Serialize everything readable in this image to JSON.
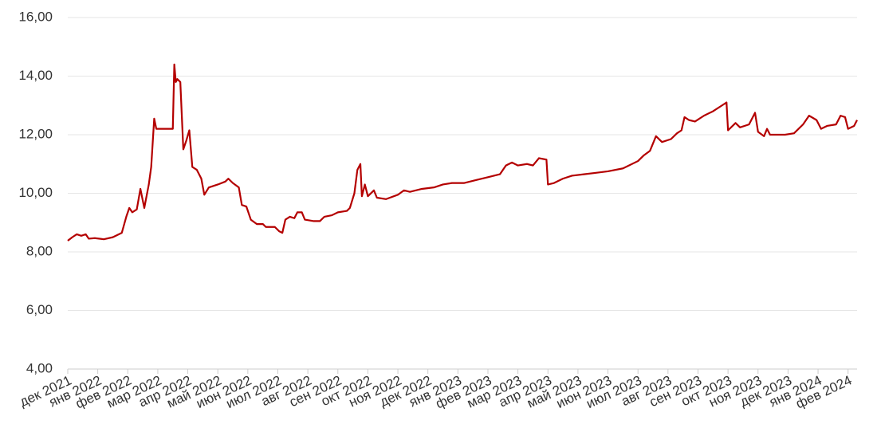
{
  "chart_data": {
    "type": "line",
    "color": "#b40000",
    "grid": true,
    "ylim": [
      4,
      16
    ],
    "yticks": [
      {
        "value": 4,
        "label": "4,00"
      },
      {
        "value": 6,
        "label": "6,00"
      },
      {
        "value": 8,
        "label": "8,00"
      },
      {
        "value": 10,
        "label": "10,00"
      },
      {
        "value": 12,
        "label": "12,00"
      },
      {
        "value": 14,
        "label": "14,00"
      },
      {
        "value": 16,
        "label": "16,00"
      }
    ],
    "xlim": [
      0,
      26.3
    ],
    "xticks": [
      {
        "value": 0,
        "label": "дек 2021"
      },
      {
        "value": 1,
        "label": "янв 2022"
      },
      {
        "value": 2,
        "label": "фев 2022"
      },
      {
        "value": 3,
        "label": "мар 2022"
      },
      {
        "value": 4,
        "label": "апр 2022"
      },
      {
        "value": 5,
        "label": "май 2022"
      },
      {
        "value": 6,
        "label": "июн 2022"
      },
      {
        "value": 7,
        "label": "июл 2022"
      },
      {
        "value": 8,
        "label": "авг 2022"
      },
      {
        "value": 9,
        "label": "сен 2022"
      },
      {
        "value": 10,
        "label": "окт 2022"
      },
      {
        "value": 11,
        "label": "ноя 2022"
      },
      {
        "value": 12,
        "label": "дек 2022"
      },
      {
        "value": 13,
        "label": "янв 2023"
      },
      {
        "value": 14,
        "label": "фев 2023"
      },
      {
        "value": 15,
        "label": "мар 2023"
      },
      {
        "value": 16,
        "label": "апр 2023"
      },
      {
        "value": 17,
        "label": "май 2023"
      },
      {
        "value": 18,
        "label": "июн 2023"
      },
      {
        "value": 19,
        "label": "июл 2023"
      },
      {
        "value": 20,
        "label": "авг 2023"
      },
      {
        "value": 21,
        "label": "сен 2023"
      },
      {
        "value": 22,
        "label": "окт 2023"
      },
      {
        "value": 23,
        "label": "ноя 2023"
      },
      {
        "value": 24,
        "label": "дек 2023"
      },
      {
        "value": 25,
        "label": "янв 2024"
      },
      {
        "value": 26,
        "label": "фев 2024"
      }
    ],
    "x": [
      0,
      0.15,
      0.3,
      0.45,
      0.6,
      0.7,
      0.9,
      1.2,
      1.5,
      1.8,
      1.95,
      2.05,
      2.15,
      2.3,
      2.42,
      2.55,
      2.7,
      2.78,
      2.88,
      2.95,
      3.5,
      3.55,
      3.6,
      3.65,
      3.75,
      3.85,
      3.95,
      4.05,
      4.15,
      4.3,
      4.45,
      4.55,
      4.7,
      5,
      5.25,
      5.35,
      5.5,
      5.7,
      5.8,
      5.95,
      6.1,
      6.3,
      6.5,
      6.6,
      6.9,
      7.05,
      7.15,
      7.25,
      7.4,
      7.55,
      7.65,
      7.8,
      7.9,
      8.2,
      8.4,
      8.55,
      8.8,
      9,
      9.3,
      9.4,
      9.55,
      9.65,
      9.75,
      9.8,
      9.9,
      10,
      10.2,
      10.3,
      10.6,
      11,
      11.2,
      11.4,
      11.8,
      12.2,
      12.5,
      12.8,
      13.2,
      13.6,
      14,
      14.4,
      14.6,
      14.8,
      15,
      15.3,
      15.5,
      15.7,
      15.95,
      16,
      16.2,
      16.5,
      16.8,
      17.2,
      17.6,
      18,
      18.5,
      19,
      19.2,
      19.4,
      19.6,
      19.8,
      20.1,
      20.3,
      20.45,
      20.55,
      20.7,
      20.9,
      21.2,
      21.5,
      21.8,
      21.95,
      22,
      22.25,
      22.4,
      22.7,
      22.9,
      23,
      23.2,
      23.3,
      23.4,
      23.9,
      24.2,
      24.5,
      24.7,
      24.95,
      25.1,
      25.3,
      25.6,
      25.75,
      25.9,
      26,
      26.2,
      26.3
    ],
    "values": [
      8.38,
      8.5,
      8.6,
      8.55,
      8.6,
      8.45,
      8.47,
      8.43,
      8.5,
      8.65,
      9.2,
      9.5,
      9.35,
      9.45,
      10.15,
      9.5,
      10.3,
      10.9,
      12.55,
      12.2,
      12.2,
      14.4,
      13.8,
      13.9,
      13.8,
      11.5,
      11.8,
      12.15,
      10.9,
      10.8,
      10.5,
      9.95,
      10.2,
      10.3,
      10.4,
      10.5,
      10.35,
      10.2,
      9.6,
      9.55,
      9.1,
      8.95,
      8.95,
      8.85,
      8.85,
      8.7,
      8.65,
      9.1,
      9.2,
      9.15,
      9.35,
      9.35,
      9.1,
      9.05,
      9.05,
      9.2,
      9.25,
      9.35,
      9.4,
      9.5,
      10,
      10.8,
      11,
      9.9,
      10.3,
      9.9,
      10.1,
      9.85,
      9.8,
      9.95,
      10.1,
      10.05,
      10.15,
      10.2,
      10.3,
      10.35,
      10.35,
      10.45,
      10.55,
      10.65,
      10.95,
      11.05,
      10.95,
      11,
      10.95,
      11.2,
      11.15,
      10.3,
      10.35,
      10.5,
      10.6,
      10.65,
      10.7,
      10.75,
      10.85,
      11.1,
      11.3,
      11.45,
      11.95,
      11.75,
      11.85,
      12.05,
      12.15,
      12.6,
      12.5,
      12.45,
      12.65,
      12.8,
      13,
      13.1,
      12.15,
      12.4,
      12.25,
      12.35,
      12.75,
      12.1,
      11.95,
      12.2,
      12,
      12,
      12.05,
      12.35,
      12.65,
      12.5,
      12.2,
      12.3,
      12.35,
      12.65,
      12.6,
      12.2,
      12.3,
      12.5
    ]
  }
}
